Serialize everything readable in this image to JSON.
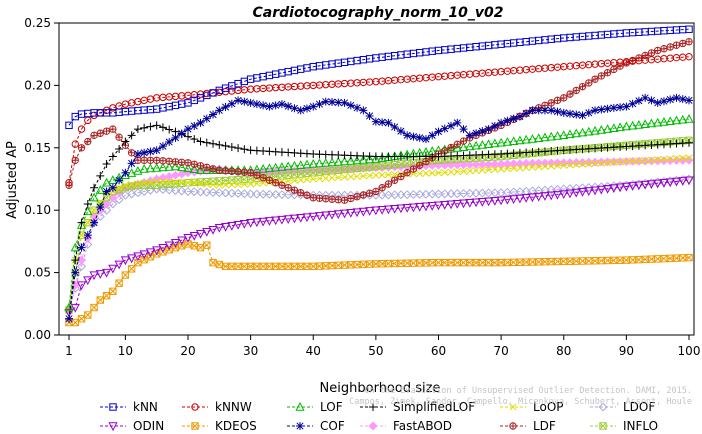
{
  "chart_data": {
    "type": "line",
    "title": "Cardiotocography_norm_10_v02",
    "xlabel": "Neighborhood size",
    "ylabel": "Adjusted AP",
    "xlim": [
      1,
      100
    ],
    "ylim": [
      0,
      0.25
    ],
    "xticks": [
      1,
      10,
      20,
      30,
      40,
      50,
      60,
      70,
      80,
      90,
      100
    ],
    "yticks": [
      0.0,
      0.05,
      0.1,
      0.15,
      0.2,
      0.25
    ],
    "xtick_labels": [
      "1",
      "10",
      "20",
      "30",
      "40",
      "50",
      "60",
      "70",
      "80",
      "90",
      "100"
    ],
    "ytick_labels": [
      "0.00",
      "0.05",
      "0.10",
      "0.15",
      "0.20",
      "0.25"
    ],
    "grid": false,
    "legend_position": "bottom",
    "watermark": [
      "On the Evaluation of Unsupervised Outlier Detection. DAMI, 2015.",
      "Campos, Zimek, Sander, Campello, Micenkova, Schubert, Assent, Houle"
    ],
    "series": [
      {
        "name": "kNN",
        "color": "#0000cc",
        "marker": "square",
        "line": "dash",
        "points": [
          [
            1,
            0.168
          ],
          [
            2,
            0.175
          ],
          [
            3,
            0.177
          ],
          [
            5,
            0.178
          ],
          [
            8,
            0.178
          ],
          [
            10,
            0.179
          ],
          [
            15,
            0.181
          ],
          [
            20,
            0.186
          ],
          [
            25,
            0.196
          ],
          [
            30,
            0.205
          ],
          [
            40,
            0.215
          ],
          [
            50,
            0.222
          ],
          [
            60,
            0.228
          ],
          [
            70,
            0.233
          ],
          [
            80,
            0.238
          ],
          [
            90,
            0.242
          ],
          [
            100,
            0.245
          ]
        ]
      },
      {
        "name": "kNNW",
        "color": "#cc0000",
        "marker": "circle",
        "line": "dash",
        "points": [
          [
            1,
            0.122
          ],
          [
            2,
            0.153
          ],
          [
            3,
            0.165
          ],
          [
            4,
            0.172
          ],
          [
            5,
            0.176
          ],
          [
            8,
            0.182
          ],
          [
            10,
            0.185
          ],
          [
            15,
            0.19
          ],
          [
            20,
            0.192
          ],
          [
            30,
            0.197
          ],
          [
            40,
            0.2
          ],
          [
            50,
            0.203
          ],
          [
            60,
            0.207
          ],
          [
            70,
            0.211
          ],
          [
            80,
            0.215
          ],
          [
            90,
            0.219
          ],
          [
            100,
            0.223
          ]
        ]
      },
      {
        "name": "LOF",
        "color": "#00bb00",
        "marker": "triangle-up",
        "line": "dash",
        "points": [
          [
            1,
            0.022
          ],
          [
            2,
            0.07
          ],
          [
            3,
            0.088
          ],
          [
            5,
            0.11
          ],
          [
            7,
            0.122
          ],
          [
            10,
            0.128
          ],
          [
            13,
            0.133
          ],
          [
            18,
            0.135
          ],
          [
            22,
            0.132
          ],
          [
            30,
            0.132
          ],
          [
            40,
            0.137
          ],
          [
            50,
            0.141
          ],
          [
            60,
            0.148
          ],
          [
            70,
            0.154
          ],
          [
            80,
            0.16
          ],
          [
            90,
            0.167
          ],
          [
            100,
            0.173
          ]
        ]
      },
      {
        "name": "SimplifiedLOF",
        "color": "#000000",
        "marker": "plus",
        "line": "dash",
        "points": [
          [
            1,
            0.013
          ],
          [
            2,
            0.06
          ],
          [
            3,
            0.09
          ],
          [
            4,
            0.105
          ],
          [
            5,
            0.118
          ],
          [
            7,
            0.137
          ],
          [
            8,
            0.143
          ],
          [
            10,
            0.155
          ],
          [
            12,
            0.165
          ],
          [
            15,
            0.168
          ],
          [
            18,
            0.163
          ],
          [
            22,
            0.155
          ],
          [
            30,
            0.148
          ],
          [
            40,
            0.145
          ],
          [
            50,
            0.143
          ],
          [
            60,
            0.143
          ],
          [
            70,
            0.145
          ],
          [
            80,
            0.148
          ],
          [
            90,
            0.151
          ],
          [
            100,
            0.154
          ]
        ]
      },
      {
        "name": "LoOP",
        "color": "#dddd00",
        "marker": "x",
        "line": "dash",
        "points": [
          [
            1,
            0.02
          ],
          [
            2,
            0.06
          ],
          [
            3,
            0.08
          ],
          [
            5,
            0.1
          ],
          [
            7,
            0.113
          ],
          [
            10,
            0.12
          ],
          [
            15,
            0.123
          ],
          [
            20,
            0.122
          ],
          [
            25,
            0.12
          ],
          [
            30,
            0.121
          ],
          [
            40,
            0.125
          ],
          [
            50,
            0.128
          ],
          [
            60,
            0.13
          ],
          [
            70,
            0.133
          ],
          [
            80,
            0.136
          ],
          [
            90,
            0.139
          ],
          [
            100,
            0.142
          ]
        ]
      },
      {
        "name": "LDOF",
        "color": "#aaaadd",
        "marker": "diamond",
        "line": "dash",
        "points": [
          [
            1,
            0.02
          ],
          [
            3,
            0.055
          ],
          [
            5,
            0.09
          ],
          [
            8,
            0.105
          ],
          [
            10,
            0.112
          ],
          [
            15,
            0.117
          ],
          [
            20,
            0.115
          ],
          [
            30,
            0.113
          ],
          [
            40,
            0.112
          ],
          [
            50,
            0.112
          ],
          [
            60,
            0.113
          ],
          [
            70,
            0.114
          ],
          [
            80,
            0.117
          ],
          [
            90,
            0.12
          ],
          [
            100,
            0.125
          ]
        ]
      },
      {
        "name": "ODIN",
        "color": "#9900cc",
        "marker": "triangle-down",
        "line": "dash",
        "points": [
          [
            1,
            0.018
          ],
          [
            2,
            0.022
          ],
          [
            3,
            0.04
          ],
          [
            5,
            0.048
          ],
          [
            7,
            0.05
          ],
          [
            10,
            0.06
          ],
          [
            15,
            0.068
          ],
          [
            20,
            0.078
          ],
          [
            25,
            0.086
          ],
          [
            30,
            0.09
          ],
          [
            40,
            0.095
          ],
          [
            50,
            0.1
          ],
          [
            60,
            0.104
          ],
          [
            70,
            0.108
          ],
          [
            80,
            0.113
          ],
          [
            90,
            0.119
          ],
          [
            100,
            0.124
          ]
        ]
      },
      {
        "name": "KDEOS",
        "color": "#ee9900",
        "marker": "square-x",
        "line": "dash",
        "points": [
          [
            1,
            0.01
          ],
          [
            2,
            0.01
          ],
          [
            4,
            0.016
          ],
          [
            6,
            0.028
          ],
          [
            8,
            0.035
          ],
          [
            10,
            0.048
          ],
          [
            12,
            0.058
          ],
          [
            15,
            0.065
          ],
          [
            18,
            0.07
          ],
          [
            20,
            0.073
          ],
          [
            22,
            0.07
          ],
          [
            23,
            0.072
          ],
          [
            24,
            0.058
          ],
          [
            26,
            0.055
          ],
          [
            30,
            0.055
          ],
          [
            40,
            0.055
          ],
          [
            50,
            0.057
          ],
          [
            60,
            0.058
          ],
          [
            70,
            0.058
          ],
          [
            80,
            0.059
          ],
          [
            90,
            0.06
          ],
          [
            100,
            0.062
          ]
        ]
      },
      {
        "name": "COF",
        "color": "#000099",
        "marker": "star",
        "line": "dash",
        "points": [
          [
            1,
            0.013
          ],
          [
            2,
            0.05
          ],
          [
            3,
            0.07
          ],
          [
            5,
            0.09
          ],
          [
            7,
            0.115
          ],
          [
            8,
            0.118
          ],
          [
            10,
            0.13
          ],
          [
            12,
            0.145
          ],
          [
            15,
            0.148
          ],
          [
            18,
            0.158
          ],
          [
            20,
            0.165
          ],
          [
            22,
            0.17
          ],
          [
            25,
            0.18
          ],
          [
            28,
            0.188
          ],
          [
            30,
            0.186
          ],
          [
            33,
            0.183
          ],
          [
            35,
            0.185
          ],
          [
            38,
            0.18
          ],
          [
            40,
            0.183
          ],
          [
            42,
            0.187
          ],
          [
            45,
            0.186
          ],
          [
            48,
            0.18
          ],
          [
            50,
            0.171
          ],
          [
            52,
            0.17
          ],
          [
            55,
            0.16
          ],
          [
            58,
            0.157
          ],
          [
            60,
            0.163
          ],
          [
            63,
            0.17
          ],
          [
            65,
            0.16
          ],
          [
            68,
            0.165
          ],
          [
            70,
            0.17
          ],
          [
            73,
            0.175
          ],
          [
            75,
            0.18
          ],
          [
            78,
            0.18
          ],
          [
            80,
            0.178
          ],
          [
            83,
            0.176
          ],
          [
            85,
            0.18
          ],
          [
            88,
            0.182
          ],
          [
            90,
            0.183
          ],
          [
            93,
            0.19
          ],
          [
            95,
            0.186
          ],
          [
            98,
            0.19
          ],
          [
            100,
            0.188
          ]
        ]
      },
      {
        "name": "FastABOD",
        "color": "#ff99ff",
        "marker": "diamond-filled",
        "line": "dash",
        "points": [
          [
            1,
            0.02
          ],
          [
            3,
            0.06
          ],
          [
            5,
            0.095
          ],
          [
            8,
            0.11
          ],
          [
            10,
            0.118
          ],
          [
            15,
            0.125
          ],
          [
            20,
            0.13
          ],
          [
            25,
            0.133
          ],
          [
            30,
            0.13
          ],
          [
            40,
            0.132
          ],
          [
            50,
            0.134
          ],
          [
            60,
            0.136
          ],
          [
            70,
            0.137
          ],
          [
            80,
            0.138
          ],
          [
            90,
            0.139
          ],
          [
            100,
            0.14
          ]
        ]
      },
      {
        "name": "LDF",
        "color": "#aa2222",
        "marker": "circle-plus",
        "line": "dash",
        "points": [
          [
            1,
            0.12
          ],
          [
            2,
            0.14
          ],
          [
            3,
            0.15
          ],
          [
            5,
            0.16
          ],
          [
            8,
            0.165
          ],
          [
            10,
            0.152
          ],
          [
            12,
            0.14
          ],
          [
            15,
            0.14
          ],
          [
            20,
            0.138
          ],
          [
            25,
            0.132
          ],
          [
            30,
            0.13
          ],
          [
            35,
            0.12
          ],
          [
            40,
            0.11
          ],
          [
            45,
            0.108
          ],
          [
            50,
            0.115
          ],
          [
            55,
            0.13
          ],
          [
            60,
            0.145
          ],
          [
            65,
            0.158
          ],
          [
            70,
            0.168
          ],
          [
            75,
            0.18
          ],
          [
            80,
            0.19
          ],
          [
            85,
            0.205
          ],
          [
            90,
            0.218
          ],
          [
            95,
            0.228
          ],
          [
            100,
            0.235
          ]
        ]
      },
      {
        "name": "INFLO",
        "color": "#99cc33",
        "marker": "square-x",
        "line": "dash",
        "points": [
          [
            1,
            0.02
          ],
          [
            2,
            0.05
          ],
          [
            3,
            0.08
          ],
          [
            5,
            0.1
          ],
          [
            8,
            0.115
          ],
          [
            10,
            0.118
          ],
          [
            12,
            0.12
          ],
          [
            15,
            0.12
          ],
          [
            20,
            0.122
          ],
          [
            30,
            0.125
          ],
          [
            40,
            0.13
          ],
          [
            50,
            0.135
          ],
          [
            60,
            0.14
          ],
          [
            70,
            0.143
          ],
          [
            80,
            0.148
          ],
          [
            90,
            0.152
          ],
          [
            100,
            0.156
          ]
        ]
      }
    ]
  }
}
